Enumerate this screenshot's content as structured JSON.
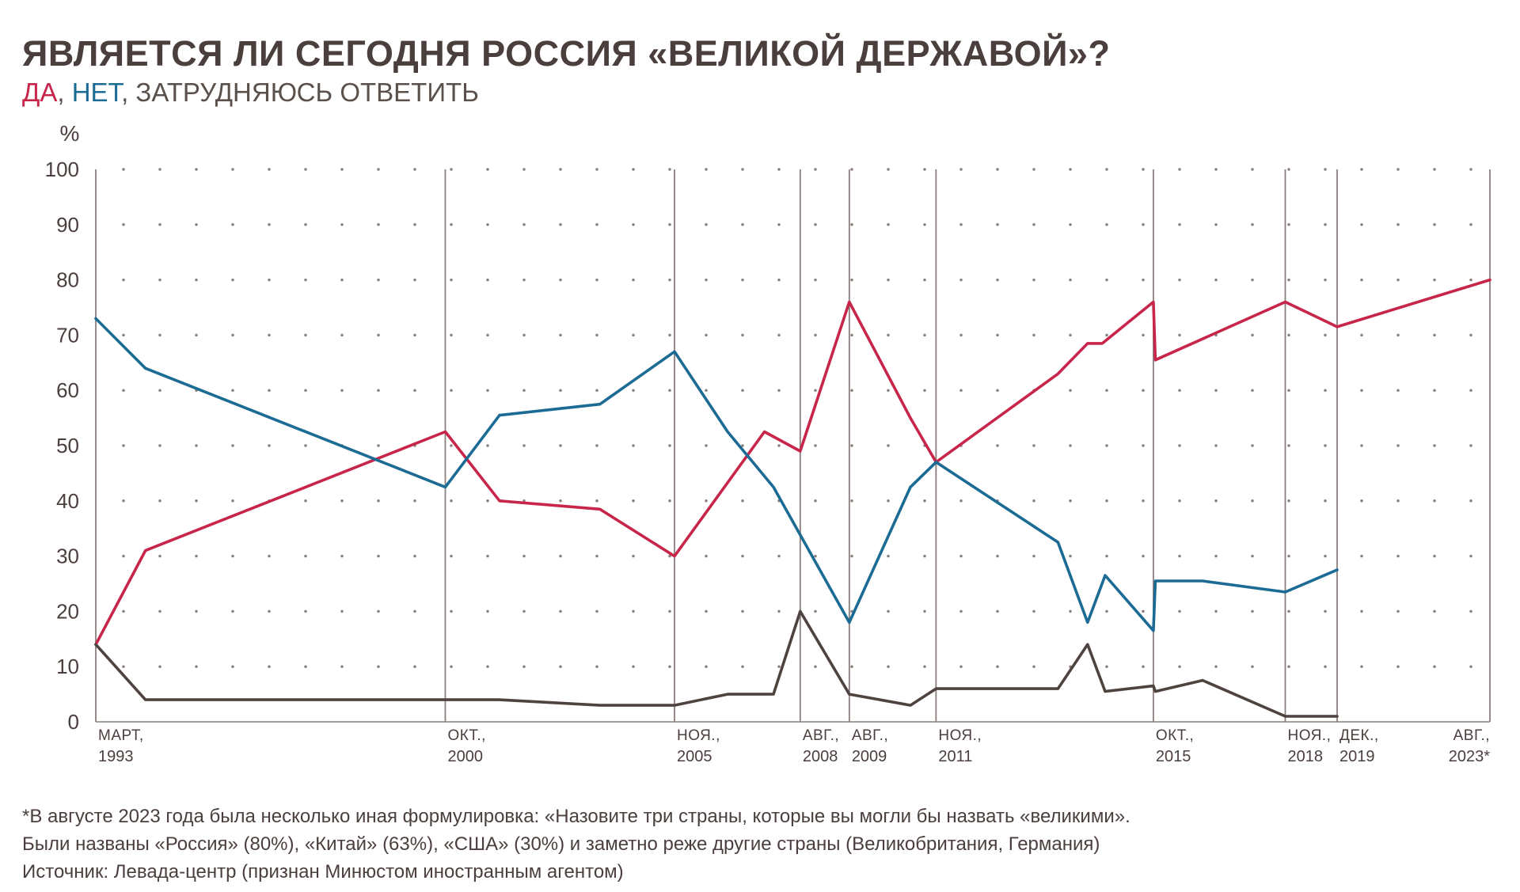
{
  "title": "ЯВЛЯЕТСЯ ЛИ СЕГОДНЯ РОССИЯ «ВЕЛИКОЙ ДЕРЖАВОЙ»?",
  "subtitle": {
    "yes": "ДА",
    "sep1": ", ",
    "no": "НЕТ",
    "rest": ", ЗАТРУДНЯЮСЬ ОТВЕТИТЬ"
  },
  "colors": {
    "yes": "#c8254a",
    "no": "#1b6b94",
    "hard": "#4f4340",
    "axis": "#8a7f7c",
    "text": "#4a3f3c"
  },
  "chart_data": {
    "type": "line",
    "ylabel": "%",
    "ylim": [
      0,
      100
    ],
    "yticks": [
      0,
      10,
      20,
      30,
      40,
      50,
      60,
      70,
      80,
      90,
      100
    ],
    "grid": "dotted",
    "markers": [
      {
        "line1": "МАРТ,",
        "line2": "1993",
        "pos": 0
      },
      {
        "line1": "ОКТ.,",
        "line2": "2000",
        "pos": 0.2507
      },
      {
        "line1": "НОЯ.,",
        "line2": "2005",
        "pos": 0.4151
      },
      {
        "line1": "АВГ.,",
        "line2": "2008",
        "pos": 0.5053
      },
      {
        "line1": "АВГ.,",
        "line2": "2009",
        "pos": 0.5405
      },
      {
        "line1": "НОЯ.,",
        "line2": "2011",
        "pos": 0.6027
      },
      {
        "line1": "ОКТ.,",
        "line2": "2015",
        "pos": 0.7586
      },
      {
        "line1": "НОЯ.,",
        "line2": "2018",
        "pos": 0.8532
      },
      {
        "line1": "ДЕК.,",
        "line2": "2019",
        "pos": 0.8904
      },
      {
        "line1": "АВГ.,",
        "line2": "2023*",
        "pos": 1
      }
    ],
    "series": [
      {
        "name": "ДА",
        "points": [
          [
            0,
            14
          ],
          [
            0.0356,
            31
          ],
          [
            0.2507,
            52.5
          ],
          [
            0.2896,
            40
          ],
          [
            0.3616,
            38.5
          ],
          [
            0.4151,
            30
          ],
          [
            0.4796,
            52.5
          ],
          [
            0.5053,
            49
          ],
          [
            0.5405,
            76
          ],
          [
            0.5843,
            55
          ],
          [
            0.6027,
            47
          ],
          [
            0.6902,
            63
          ],
          [
            0.7114,
            68.5
          ],
          [
            0.7219,
            68.5
          ],
          [
            0.7586,
            76
          ],
          [
            0.76,
            65.5
          ],
          [
            0.8532,
            76
          ],
          [
            0.8904,
            71.5
          ],
          [
            1,
            80
          ]
        ]
      },
      {
        "name": "НЕТ",
        "points": [
          [
            0,
            73
          ],
          [
            0.0356,
            64
          ],
          [
            0.2507,
            42.5
          ],
          [
            0.2896,
            55.5
          ],
          [
            0.3616,
            57.5
          ],
          [
            0.4151,
            67
          ],
          [
            0.4532,
            52.5
          ],
          [
            0.4861,
            42.5
          ],
          [
            0.5405,
            18
          ],
          [
            0.5843,
            42.5
          ],
          [
            0.6027,
            47
          ],
          [
            0.6902,
            32.5
          ],
          [
            0.7114,
            18
          ],
          [
            0.724,
            26.5
          ],
          [
            0.7586,
            16.5
          ],
          [
            0.76,
            25.5
          ],
          [
            0.7939,
            25.5
          ],
          [
            0.8532,
            23.5
          ],
          [
            0.8904,
            27.5
          ]
        ]
      },
      {
        "name": "ЗАТРУДНЯЮСЬ ОТВЕТИТЬ",
        "points": [
          [
            0,
            14
          ],
          [
            0.0356,
            4
          ],
          [
            0.2507,
            4
          ],
          [
            0.2896,
            4
          ],
          [
            0.3616,
            3
          ],
          [
            0.4151,
            3
          ],
          [
            0.4532,
            5
          ],
          [
            0.4861,
            5
          ],
          [
            0.5053,
            20
          ],
          [
            0.5405,
            5
          ],
          [
            0.5843,
            3
          ],
          [
            0.6027,
            6
          ],
          [
            0.6902,
            6
          ],
          [
            0.7114,
            14
          ],
          [
            0.724,
            5.5
          ],
          [
            0.7586,
            6.5
          ],
          [
            0.76,
            5.5
          ],
          [
            0.7939,
            7.5
          ],
          [
            0.8532,
            1
          ],
          [
            0.8904,
            1
          ]
        ]
      }
    ]
  },
  "footnotes": [
    "*В августе 2023 года была несколько иная формулировка: «Назовите три страны, которые вы могли бы назвать «великими».",
    "Были названы «Россия» (80%), «Китай» (63%), «США» (30%) и заметно реже другие страны (Великобритания, Германия)",
    "Источник: Левада-центр (признан Минюстом иностранным агентом)"
  ]
}
